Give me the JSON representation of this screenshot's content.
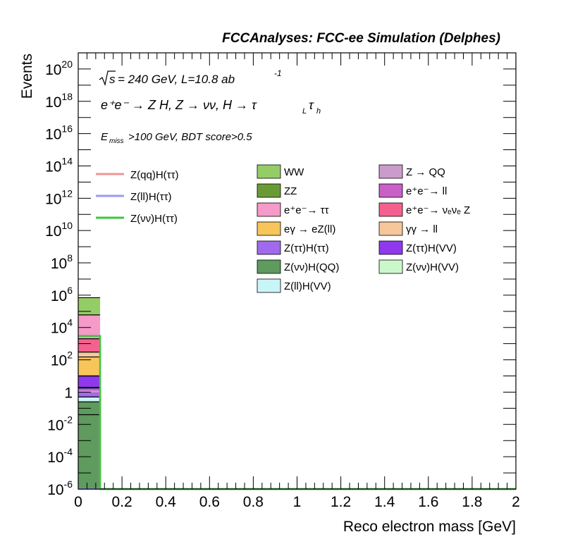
{
  "chart_data": {
    "type": "bar",
    "stacked": true,
    "log_y": true,
    "title": "FCCAnalyses: FCC-ee Simulation (Delphes)",
    "annotations": {
      "sqrt_s": "s",
      "energy_lumi": "= 240 GeV, L=10.8 ab",
      "lumi_exp": "-1",
      "process": "e⁺e⁻ → Z H, Z → νν, H → τ",
      "tau_l_sub": "L",
      "tau_h": "τ",
      "tau_h_sub": "h",
      "cut_e": "E",
      "cut_sub": "miss",
      "cut_rest": ">100 GeV, BDT score>0.5"
    },
    "xlabel": "Reco electron mass [GeV]",
    "ylabel": "Events",
    "xlim": [
      0,
      2
    ],
    "ylim": [
      1e-06,
      1e+21
    ],
    "x_ticks": [
      "0",
      "0.2",
      "0.4",
      "0.6",
      "0.8",
      "1",
      "1.2",
      "1.4",
      "1.6",
      "1.8",
      "2"
    ],
    "y_ticks": [
      {
        "v": 1e-06,
        "b": "10",
        "e": "-6"
      },
      {
        "v": 0.0001,
        "b": "10",
        "e": "-4"
      },
      {
        "v": 0.01,
        "b": "10",
        "e": "-2"
      },
      {
        "v": 1,
        "b": "1",
        "e": ""
      },
      {
        "v": 100.0,
        "b": "10",
        "e": "2"
      },
      {
        "v": 10000.0,
        "b": "10",
        "e": "4"
      },
      {
        "v": 1000000.0,
        "b": "10",
        "e": "6"
      },
      {
        "v": 100000000.0,
        "b": "10",
        "e": "8"
      },
      {
        "v": 10000000000.0,
        "b": "10",
        "e": "10"
      },
      {
        "v": 1000000000000.0,
        "b": "10",
        "e": "12"
      },
      {
        "v": 100000000000000.0,
        "b": "10",
        "e": "14"
      },
      {
        "v": 1e+16,
        "b": "10",
        "e": "16"
      },
      {
        "v": 1e+18,
        "b": "10",
        "e": "18"
      },
      {
        "v": 1e+20,
        "b": "10",
        "e": "20"
      }
    ],
    "bin": [
      0,
      0.1
    ],
    "stack": [
      {
        "name": "Z(νν)H(QQ)",
        "value": 0.25,
        "color": "#5f9a5f"
      },
      {
        "name": "Z(ll)H(VV)",
        "value": 0.5,
        "color": "#c8f5f8"
      },
      {
        "name": "Z(ττ)H(ττ)",
        "value": 1.8,
        "color": "#a06aee"
      },
      {
        "name": "Z(ττ)H(VV)",
        "value": 10,
        "color": "#9038ee"
      },
      {
        "name": "eγ → eZ(ll)",
        "value": 150,
        "color": "#f7c559"
      },
      {
        "name": "γγ → ll",
        "value": 300,
        "color": "#f5c79b"
      },
      {
        "name": "e⁺e⁻→ νₑνₑ Z",
        "value": 2000,
        "color": "#f5618f"
      },
      {
        "name": "e⁺e⁻→ ττ",
        "value": 60000,
        "color": "#f59ac9"
      },
      {
        "name": "WW",
        "value": 700000,
        "color": "#94cd66"
      }
    ],
    "stack_edges": [
      0.04,
      2,
      10
    ],
    "signals": [
      {
        "name": "Z(qq)H(ττ)",
        "color": "#f09595",
        "value": 1.1
      },
      {
        "name": "Z(ll)H(ττ)",
        "color": "#9b9bf2",
        "value": 1e-06
      },
      {
        "name": "Z(νν)H(ττ)",
        "color": "#3ec43e",
        "value": 3000
      }
    ],
    "legend_col1": [
      {
        "name": "WW",
        "color": "#94cd66"
      },
      {
        "name": "ZZ",
        "color": "#6a9a35"
      },
      {
        "name": "e⁺e⁻→ ττ",
        "color": "#f59ac9"
      },
      {
        "name": "eγ → eZ(ll)",
        "color": "#f7c559"
      },
      {
        "name": "Z(ττ)H(ττ)",
        "color": "#a06aee"
      },
      {
        "name": "Z(νν)H(QQ)",
        "color": "#5f9a5f"
      },
      {
        "name": "Z(ll)H(VV)",
        "color": "#c8f5f8"
      }
    ],
    "legend_col2": [
      {
        "name": "Z → QQ",
        "color": "#cb9ccb"
      },
      {
        "name": "e⁺e⁻→ ll",
        "color": "#c860c8"
      },
      {
        "name": "e⁺e⁻→ νₑνₑ Z",
        "color": "#f5618f"
      },
      {
        "name": "γγ → ll",
        "color": "#f5c79b"
      },
      {
        "name": "Z(ττ)H(VV)",
        "color": "#9038ee"
      },
      {
        "name": "Z(νν)H(VV)",
        "color": "#cbf8cb"
      }
    ]
  }
}
